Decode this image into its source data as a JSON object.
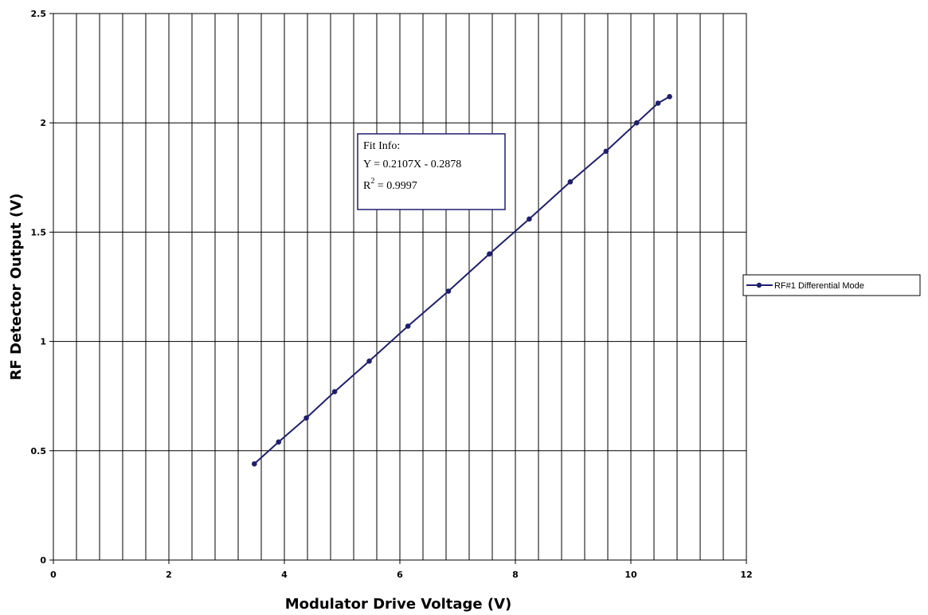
{
  "chart_data": {
    "type": "line",
    "xlabel": "Modulator Drive Voltage (V)",
    "ylabel": "RF Detector Output (V)",
    "xlim": [
      0,
      12
    ],
    "ylim": [
      0,
      2.5
    ],
    "x_ticks": [
      "0",
      "2",
      "4",
      "6",
      "8",
      "10",
      "12"
    ],
    "y_ticks": [
      "0",
      "0.5",
      "1",
      "1.5",
      "2",
      "2.5"
    ],
    "x_minor_step": 0.4,
    "grid": true,
    "legend_position": "right",
    "series": [
      {
        "name": "RF#1 Differential Mode",
        "color": "#1f1f6e",
        "x": [
          3.48,
          3.9,
          4.38,
          4.87,
          5.47,
          6.14,
          6.84,
          7.55,
          8.24,
          8.95,
          9.57,
          10.1,
          10.47,
          10.67
        ],
        "y": [
          0.44,
          0.54,
          0.65,
          0.77,
          0.91,
          1.07,
          1.23,
          1.4,
          1.56,
          1.73,
          1.87,
          2.0,
          2.09,
          2.12
        ]
      }
    ],
    "annotation": {
      "line1": "Fit Info:",
      "line2": "Y = 0.2107X - 0.2878",
      "line3_prefix": "R",
      "line3_sup": "2",
      "line3_suffix": " = 0.9997"
    }
  }
}
